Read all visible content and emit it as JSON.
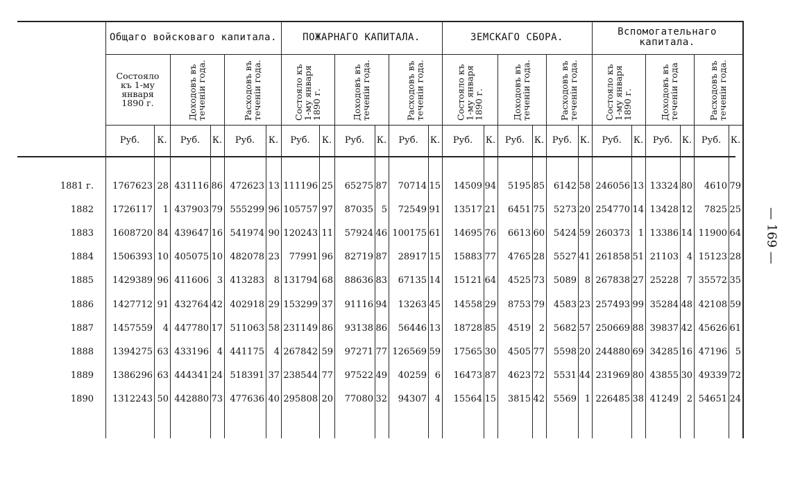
{
  "groups": [
    {
      "title": "Общаго войсковаго капитала.",
      "columns": [
        "Состояло къ 1-му января 1890 г.",
        "Доходовъ въ теченіи года.",
        "Расходовъ въ теченіи года."
      ]
    },
    {
      "title": "ПОЖАРНАГО КАПИТАЛА.",
      "columns": [
        "Состояло къ 1-му января 1890 г.",
        "Доходовъ въ теченіи года.",
        "Расходовъ въ теченіи года."
      ]
    },
    {
      "title": "ЗЕМСКАГО СБОРА.",
      "columns": [
        "Состояло къ 1-му января 1890 г.",
        "Доходовъ въ теченіи года.",
        "Расходовъ въ теченіи года."
      ]
    },
    {
      "title": "Вспомогательнаго капитала.",
      "columns": [
        "Состояло къ 1-му января 1890 г.",
        "Доходовъ въ теченіи года",
        "Расходовъ въ теченіи года."
      ]
    }
  ],
  "units": [
    "Руб.",
    "К."
  ],
  "rows": [
    {
      "year": "1881 г.",
      "cells": [
        1767623,
        28,
        431116,
        86,
        472623,
        13,
        111196,
        25,
        65275,
        87,
        70714,
        15,
        14509,
        94,
        5195,
        85,
        6142,
        58,
        246056,
        13,
        13324,
        80,
        4610,
        79
      ]
    },
    {
      "year": "1882",
      "cells": [
        1726117,
        1,
        437903,
        79,
        555299,
        96,
        105757,
        97,
        87035,
        5,
        72549,
        91,
        13517,
        21,
        6451,
        75,
        5273,
        20,
        254770,
        14,
        13428,
        12,
        7825,
        25
      ]
    },
    {
      "year": "1883",
      "cells": [
        1608720,
        84,
        439647,
        16,
        541974,
        90,
        120243,
        11,
        57924,
        46,
        100175,
        61,
        14695,
        76,
        6613,
        60,
        5424,
        59,
        260373,
        1,
        13386,
        14,
        11900,
        64
      ]
    },
    {
      "year": "1884",
      "cells": [
        1506393,
        10,
        405075,
        10,
        482078,
        23,
        77991,
        96,
        82719,
        87,
        28917,
        15,
        15883,
        77,
        4765,
        28,
        5527,
        41,
        261858,
        51,
        21103,
        4,
        15123,
        28
      ]
    },
    {
      "year": "1885",
      "cells": [
        1429389,
        96,
        411606,
        3,
        413283,
        8,
        131794,
        68,
        88636,
        83,
        67135,
        14,
        15121,
        64,
        4525,
        73,
        5089,
        8,
        267838,
        27,
        25228,
        7,
        35572,
        35
      ]
    },
    {
      "year": "1886",
      "cells": [
        1427712,
        91,
        432764,
        42,
        402918,
        29,
        153299,
        37,
        91116,
        94,
        13263,
        45,
        14558,
        29,
        8753,
        79,
        4583,
        23,
        257493,
        99,
        35284,
        48,
        42108,
        59
      ]
    },
    {
      "year": "1887",
      "cells": [
        1457559,
        4,
        447780,
        17,
        511063,
        58,
        231149,
        86,
        93138,
        86,
        56446,
        13,
        18728,
        85,
        4519,
        2,
        5682,
        57,
        250669,
        88,
        39837,
        42,
        45626,
        61
      ]
    },
    {
      "year": "1888",
      "cells": [
        1394275,
        63,
        433196,
        4,
        441175,
        4,
        267842,
        59,
        97271,
        77,
        126569,
        59,
        17565,
        30,
        4505,
        77,
        5598,
        20,
        244880,
        69,
        34285,
        16,
        47196,
        5
      ]
    },
    {
      "year": "1889",
      "cells": [
        1386296,
        63,
        444341,
        24,
        518391,
        37,
        238544,
        77,
        97522,
        49,
        40259,
        6,
        16473,
        87,
        4623,
        72,
        5531,
        44,
        231969,
        80,
        43855,
        30,
        49339,
        72
      ]
    },
    {
      "year": "1890",
      "cells": [
        1312243,
        50,
        442880,
        73,
        477636,
        40,
        295808,
        20,
        77080,
        32,
        94307,
        4,
        15564,
        15,
        3815,
        42,
        5569,
        1,
        226485,
        38,
        41249,
        2,
        54651,
        24
      ]
    }
  ],
  "page_number": "— 169 —"
}
